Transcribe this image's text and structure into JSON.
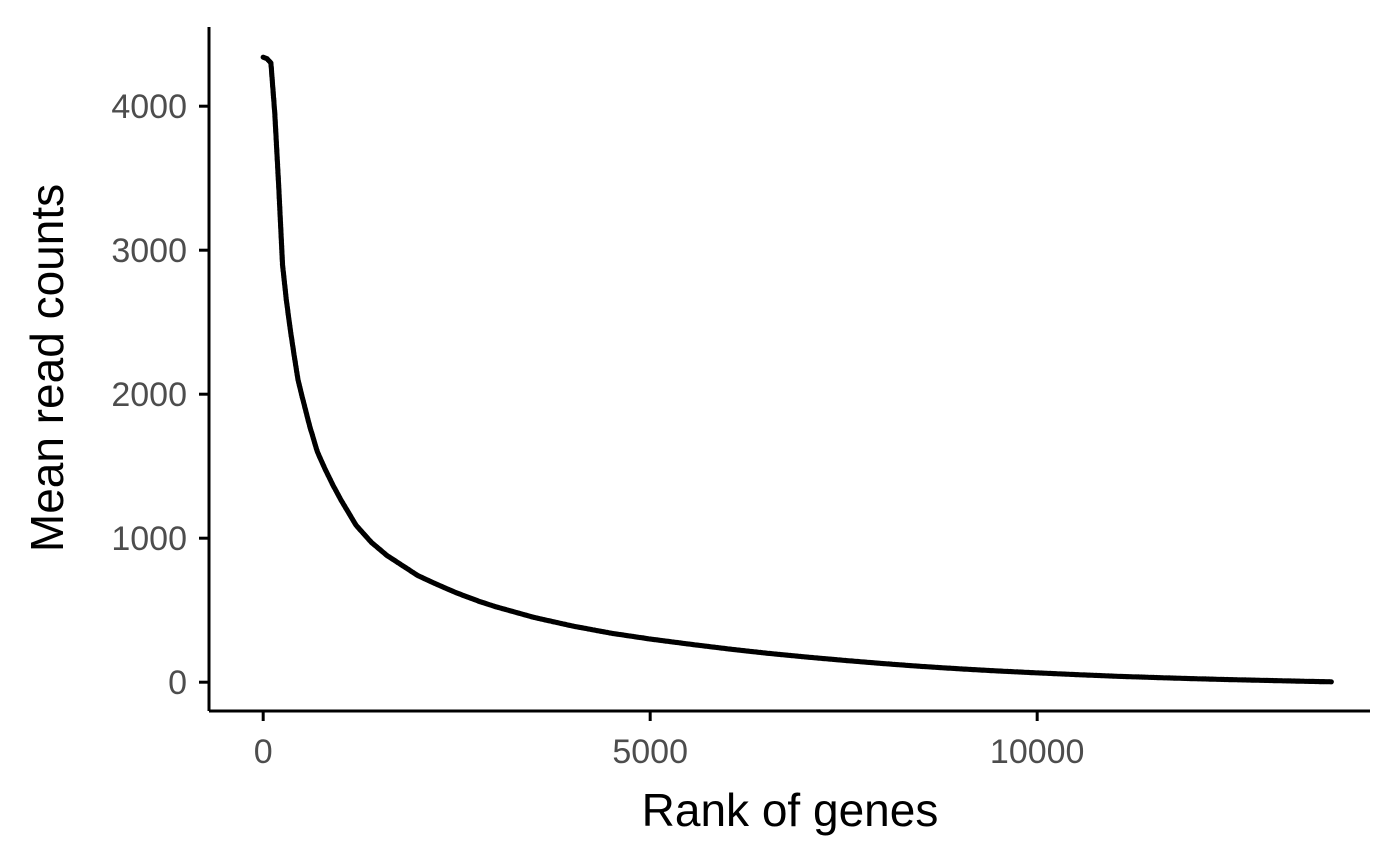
{
  "chart_data": {
    "type": "scatter",
    "title": "",
    "xlabel": "Rank of genes",
    "ylabel": "Mean read counts",
    "xlim": [
      -700,
      14300
    ],
    "ylim": [
      -200,
      4550
    ],
    "x_ticks": [
      0,
      5000,
      10000
    ],
    "x_tick_labels": [
      "0",
      "5000",
      "10000"
    ],
    "y_ticks": [
      0,
      1000,
      2000,
      3000,
      4000
    ],
    "y_tick_labels": [
      "0",
      "1000",
      "2000",
      "3000",
      "4000"
    ],
    "grid": false,
    "legend": "none",
    "point_color": "#000000",
    "series": [
      {
        "x": [
          0,
          50,
          100,
          150,
          200,
          250,
          300,
          350,
          400,
          450,
          500,
          600,
          700,
          800,
          900,
          1000,
          1200,
          1400,
          1600,
          1800,
          2000,
          2200,
          2500,
          2800,
          3000,
          3500,
          4000,
          4500,
          5000,
          5500,
          6000,
          6500,
          7000,
          7500,
          8000,
          8500,
          9000,
          9500,
          10000,
          10500,
          11000,
          11500,
          12000,
          12500,
          13000,
          13500,
          13800
        ],
        "y": [
          4340,
          4330,
          4300,
          3950,
          3450,
          2900,
          2650,
          2450,
          2270,
          2100,
          1990,
          1780,
          1600,
          1480,
          1370,
          1270,
          1090,
          970,
          880,
          810,
          740,
          690,
          620,
          560,
          525,
          450,
          390,
          340,
          300,
          265,
          232,
          202,
          176,
          152,
          130,
          110,
          93,
          78,
          65,
          53,
          42,
          33,
          25,
          18,
          12,
          6,
          3
        ]
      }
    ]
  }
}
